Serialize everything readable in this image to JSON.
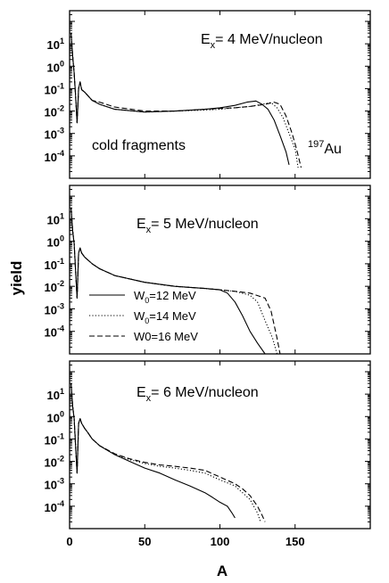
{
  "figure": {
    "ylabel": "yield",
    "xlabel": "A"
  },
  "chart_data": [
    {
      "type": "line",
      "panel": "top",
      "label_main": "E",
      "label_sub": "x",
      "label_rest": "= 4 MeV/nucleon",
      "annotations": [
        "cold fragments",
        "197",
        "Au"
      ],
      "xlim": [
        0,
        200
      ],
      "x_ticks": [
        0,
        50,
        100,
        150
      ],
      "y_scale": "log",
      "ylim": [
        1e-05,
        300
      ],
      "y_ticks": [
        {
          "base": "10",
          "exp": "1",
          "value": 10
        },
        {
          "base": "10",
          "exp": "0",
          "value": 1
        },
        {
          "base": "10",
          "exp": "-1",
          "value": 0.1
        },
        {
          "base": "10",
          "exp": "-2",
          "value": 0.01
        },
        {
          "base": "10",
          "exp": "-3",
          "value": 0.001
        },
        {
          "base": "10",
          "exp": "-4",
          "value": 0.0001
        }
      ],
      "series": [
        {
          "style": "solid",
          "x": [
            1,
            2,
            3,
            4,
            5,
            6,
            7,
            8,
            10,
            12,
            15,
            20,
            30,
            50,
            70,
            90,
            100,
            110,
            118,
            124,
            128,
            132,
            136,
            140,
            144,
            146
          ],
          "y": [
            30,
            3,
            0.5,
            0.05,
            0.003,
            0.1,
            0.2,
            0.09,
            0.07,
            0.05,
            0.03,
            0.02,
            0.012,
            0.009,
            0.01,
            0.012,
            0.014,
            0.018,
            0.025,
            0.028,
            0.02,
            0.012,
            0.004,
            0.0008,
            0.00015,
            4e-05
          ]
        },
        {
          "style": "dotted",
          "x": [
            1,
            2,
            3,
            4,
            5,
            6,
            7,
            8,
            10,
            12,
            15,
            20,
            30,
            50,
            70,
            90,
            100,
            110,
            120,
            128,
            134,
            138,
            142,
            146,
            150,
            152
          ],
          "y": [
            30,
            3,
            0.5,
            0.05,
            0.003,
            0.1,
            0.2,
            0.09,
            0.07,
            0.05,
            0.03,
            0.02,
            0.012,
            0.009,
            0.01,
            0.011,
            0.012,
            0.014,
            0.016,
            0.02,
            0.024,
            0.014,
            0.005,
            0.001,
            0.0002,
            3e-05
          ]
        },
        {
          "style": "dashed",
          "x": [
            1,
            2,
            3,
            4,
            5,
            6,
            7,
            8,
            10,
            12,
            15,
            20,
            30,
            50,
            70,
            90,
            100,
            110,
            120,
            130,
            136,
            140,
            144,
            148,
            151,
            154
          ],
          "y": [
            30,
            3,
            0.5,
            0.05,
            0.003,
            0.1,
            0.2,
            0.09,
            0.07,
            0.05,
            0.03,
            0.025,
            0.015,
            0.01,
            0.01,
            0.012,
            0.013,
            0.014,
            0.016,
            0.02,
            0.025,
            0.02,
            0.006,
            0.001,
            0.0002,
            3e-05
          ]
        }
      ]
    },
    {
      "type": "line",
      "panel": "middle",
      "label_main": "E",
      "label_sub": "x",
      "label_rest": "= 5 MeV/nucleon",
      "legend": [
        {
          "style": "solid",
          "main": "W",
          "sub": "0",
          "rest": "=12 MeV"
        },
        {
          "style": "dotted",
          "main": "W",
          "sub": "0",
          "rest": "=14 MeV"
        },
        {
          "style": "dashed",
          "main": "W0",
          "sub": "",
          "rest": "=16 MeV"
        }
      ],
      "xlim": [
        0,
        200
      ],
      "x_ticks": [
        0,
        50,
        100,
        150
      ],
      "y_scale": "log",
      "ylim": [
        1e-05,
        300
      ],
      "y_ticks": [
        {
          "base": "10",
          "exp": "1",
          "value": 10
        },
        {
          "base": "10",
          "exp": "0",
          "value": 1
        },
        {
          "base": "10",
          "exp": "-1",
          "value": 0.1
        },
        {
          "base": "10",
          "exp": "-2",
          "value": 0.01
        },
        {
          "base": "10",
          "exp": "-3",
          "value": 0.001
        },
        {
          "base": "10",
          "exp": "-4",
          "value": 0.0001
        }
      ],
      "series": [
        {
          "style": "solid",
          "x": [
            1,
            2,
            3,
            4,
            5,
            6,
            7,
            8,
            10,
            12,
            15,
            20,
            30,
            50,
            70,
            90,
            100,
            105,
            110,
            115,
            120,
            125,
            130
          ],
          "y": [
            30,
            3,
            0.8,
            0.05,
            0.003,
            0.3,
            0.5,
            0.3,
            0.2,
            0.15,
            0.1,
            0.06,
            0.03,
            0.015,
            0.01,
            0.008,
            0.007,
            0.005,
            0.002,
            0.0005,
            0.0001,
            3e-05,
            1e-05
          ]
        },
        {
          "style": "dotted",
          "x": [
            1,
            2,
            3,
            4,
            5,
            6,
            7,
            8,
            10,
            12,
            15,
            20,
            30,
            50,
            70,
            90,
            100,
            110,
            120,
            125,
            130,
            135,
            138
          ],
          "y": [
            30,
            3,
            0.8,
            0.05,
            0.003,
            0.3,
            0.5,
            0.3,
            0.2,
            0.15,
            0.1,
            0.06,
            0.03,
            0.015,
            0.01,
            0.008,
            0.007,
            0.006,
            0.004,
            0.002,
            0.0003,
            5e-05,
            1e-05
          ]
        },
        {
          "style": "dashed",
          "x": [
            1,
            2,
            3,
            4,
            5,
            6,
            7,
            8,
            10,
            12,
            15,
            20,
            30,
            50,
            70,
            90,
            100,
            110,
            120,
            130,
            134,
            138,
            140
          ],
          "y": [
            30,
            3,
            0.8,
            0.05,
            0.003,
            0.3,
            0.5,
            0.3,
            0.2,
            0.15,
            0.1,
            0.06,
            0.03,
            0.015,
            0.01,
            0.008,
            0.007,
            0.006,
            0.005,
            0.003,
            0.0008,
            5e-05,
            1e-05
          ]
        }
      ]
    },
    {
      "type": "line",
      "panel": "bottom",
      "label_main": "E",
      "label_sub": "x",
      "label_rest": "= 6 MeV/nucleon",
      "xlim": [
        0,
        200
      ],
      "x_ticks": [
        0,
        50,
        100,
        150
      ],
      "y_scale": "log",
      "ylim": [
        1e-05,
        300
      ],
      "y_ticks": [
        {
          "base": "10",
          "exp": "1",
          "value": 10
        },
        {
          "base": "10",
          "exp": "0",
          "value": 1
        },
        {
          "base": "10",
          "exp": "-1",
          "value": 0.1
        },
        {
          "base": "10",
          "exp": "-2",
          "value": 0.01
        },
        {
          "base": "10",
          "exp": "-3",
          "value": 0.001
        },
        {
          "base": "10",
          "exp": "-4",
          "value": 0.0001
        }
      ],
      "series": [
        {
          "style": "solid",
          "x": [
            1,
            2,
            3,
            4,
            5,
            6,
            7,
            8,
            10,
            12,
            15,
            20,
            30,
            40,
            50,
            60,
            70,
            80,
            90,
            95,
            100,
            105,
            108,
            110
          ],
          "y": [
            30,
            3,
            0.8,
            0.05,
            0.003,
            0.5,
            0.8,
            0.5,
            0.3,
            0.2,
            0.1,
            0.05,
            0.02,
            0.01,
            0.005,
            0.003,
            0.0015,
            0.0008,
            0.0004,
            0.00025,
            0.00015,
            0.0001,
            5e-05,
            3e-05
          ]
        },
        {
          "style": "dotted",
          "x": [
            1,
            2,
            3,
            4,
            5,
            6,
            7,
            8,
            10,
            12,
            15,
            20,
            30,
            40,
            50,
            60,
            70,
            80,
            90,
            100,
            110,
            115,
            120,
            125,
            127
          ],
          "y": [
            30,
            3,
            0.8,
            0.05,
            0.003,
            0.5,
            0.8,
            0.5,
            0.3,
            0.2,
            0.1,
            0.05,
            0.02,
            0.012,
            0.008,
            0.006,
            0.005,
            0.004,
            0.003,
            0.0015,
            0.0008,
            0.0004,
            0.0002,
            5e-05,
            2e-05
          ]
        },
        {
          "style": "dashed",
          "x": [
            1,
            2,
            3,
            4,
            5,
            6,
            7,
            8,
            10,
            12,
            15,
            20,
            30,
            40,
            50,
            60,
            70,
            80,
            90,
            100,
            110,
            115,
            120,
            125,
            128,
            130
          ],
          "y": [
            30,
            3,
            0.8,
            0.05,
            0.003,
            0.5,
            0.8,
            0.5,
            0.3,
            0.2,
            0.1,
            0.05,
            0.022,
            0.013,
            0.009,
            0.007,
            0.006,
            0.005,
            0.004,
            0.002,
            0.001,
            0.0006,
            0.0003,
            0.0001,
            4e-05,
            2e-05
          ]
        }
      ]
    }
  ]
}
